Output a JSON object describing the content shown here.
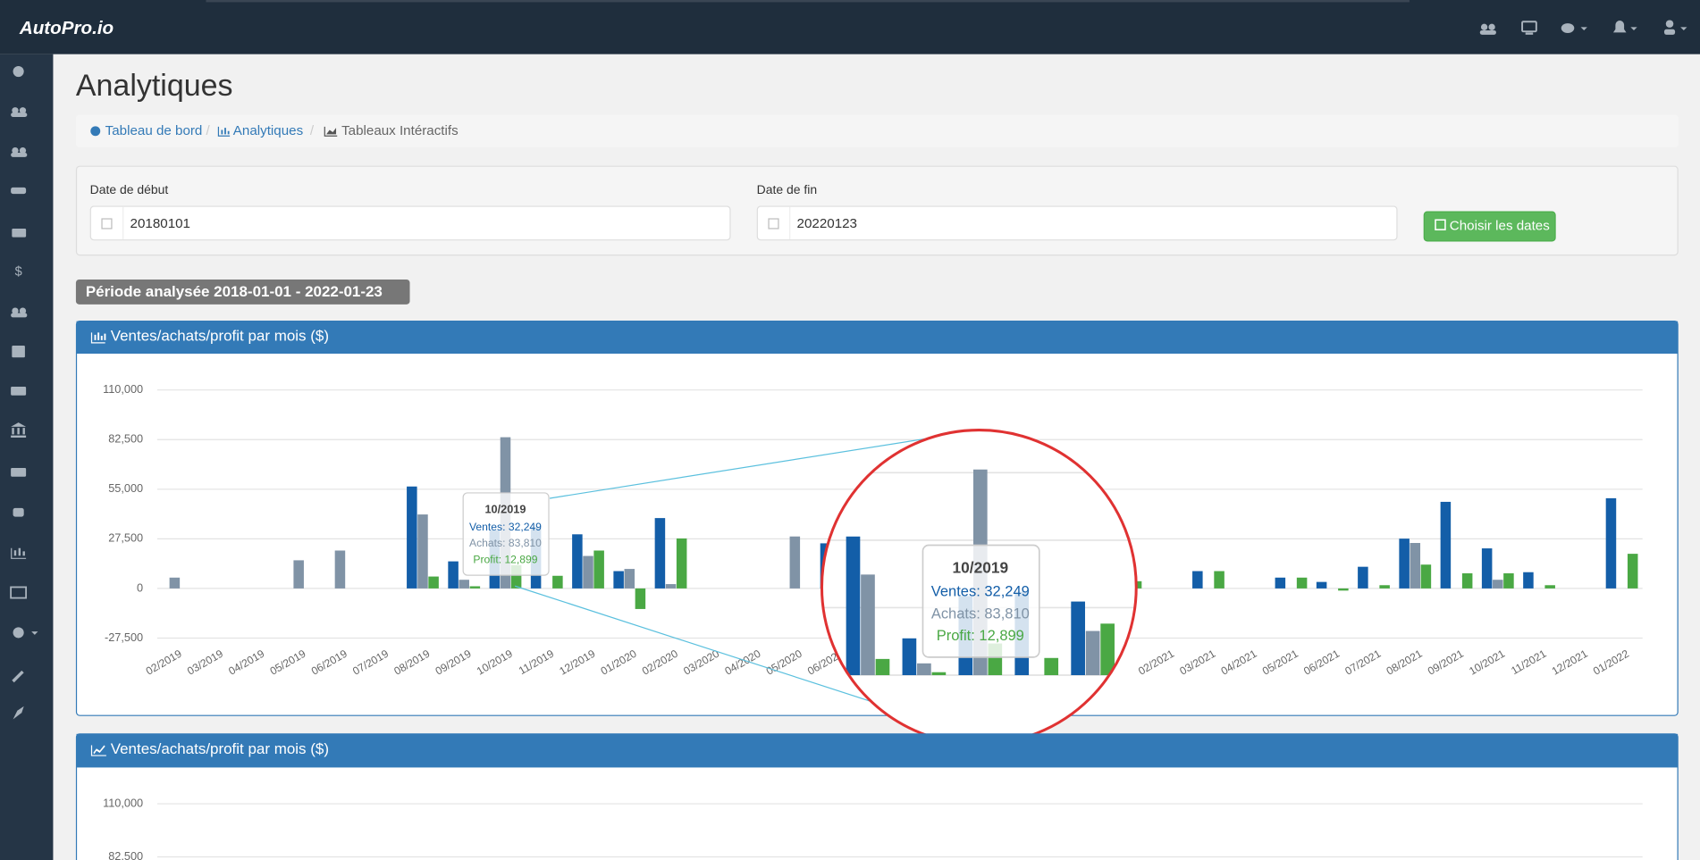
{
  "brand": "AutoPro.io",
  "page_title": "Analytiques",
  "breadcrumb": [
    "Tableau de bord",
    "Analytiques",
    "Tableaux Intéractifs"
  ],
  "filters": {
    "start_label": "Date de début",
    "start_value": "20180101",
    "end_label": "Date de fin",
    "end_value": "20220123",
    "button": "Choisir les dates"
  },
  "period_badge": "Période analysée 2018-01-01 - 2022-01-23",
  "chart_data": [
    {
      "type": "bar",
      "title": "Ventes/achats/profit par mois ($)",
      "categories": [
        "02/2019",
        "03/2019",
        "04/2019",
        "05/2019",
        "06/2019",
        "07/2019",
        "08/2019",
        "09/2019",
        "10/2019",
        "11/2019",
        "12/2019",
        "01/2020",
        "02/2020",
        "03/2020",
        "04/2020",
        "05/2020",
        "06/2020",
        null,
        null,
        null,
        null,
        null,
        null,
        null,
        "02/2021",
        "03/2021",
        "04/2021",
        "05/2021",
        "06/2021",
        "07/2021",
        "08/2021",
        "09/2021",
        "10/2021",
        "11/2021",
        "12/2021",
        "01/2022"
      ],
      "series": [
        {
          "color": "#135ea8",
          "values": [
            0,
            0,
            0,
            0,
            0,
            0,
            56500,
            15000,
            32249,
            34000,
            30000,
            9600,
            39000,
            0,
            0,
            0,
            25000,
            null,
            null,
            null,
            null,
            null,
            null,
            null,
            0,
            9600,
            0,
            6000,
            3600,
            12000,
            27600,
            48000,
            22200,
            9000,
            0,
            50000
          ]
        },
        {
          "color": "#8093a6",
          "values": [
            6000,
            0,
            0,
            15600,
            21000,
            0,
            41000,
            4800,
            83810,
            null,
            18000,
            10800,
            2400,
            0,
            0,
            28800,
            null,
            null,
            null,
            null,
            null,
            null,
            null,
            null,
            0,
            0,
            0,
            0,
            0,
            0,
            25200,
            0,
            4800,
            0,
            0,
            0
          ]
        },
        {
          "color": "#4aa844",
          "values": [
            0,
            0,
            0,
            0,
            0,
            0,
            6600,
            1200,
            12899,
            7000,
            21000,
            -11400,
            27700,
            0,
            0,
            0,
            null,
            null,
            null,
            null,
            null,
            null,
            null,
            4000,
            0,
            9600,
            0,
            6000,
            -1200,
            1800,
            13200,
            8400,
            8400,
            1800,
            0,
            19200
          ]
        }
      ],
      "ylim": [
        -27500,
        110000
      ],
      "yticks": [
        {
          "value": -27500,
          "label": "-27,500"
        },
        0,
        {
          "value": 27500,
          "label": "27,500"
        },
        {
          "value": 55000,
          "label": "55,000"
        },
        {
          "value": 82500,
          "label": "82,500"
        },
        {
          "value": 110000,
          "label": "110,000"
        }
      ],
      "grid": true,
      "tooltip": {
        "title": "10/2019",
        "lines": [
          "Ventes: 32,249",
          "Achats: 83,810",
          "Profit: 12,899"
        ]
      }
    },
    {
      "type": "line",
      "title": "Ventes/achats/profit par mois ($)",
      "ylim": [
        82500,
        110000
      ],
      "yticks": [
        {
          "value": 82500,
          "label": "82,500"
        },
        {
          "value": 110000,
          "label": "110,000"
        }
      ],
      "grid": true
    }
  ]
}
